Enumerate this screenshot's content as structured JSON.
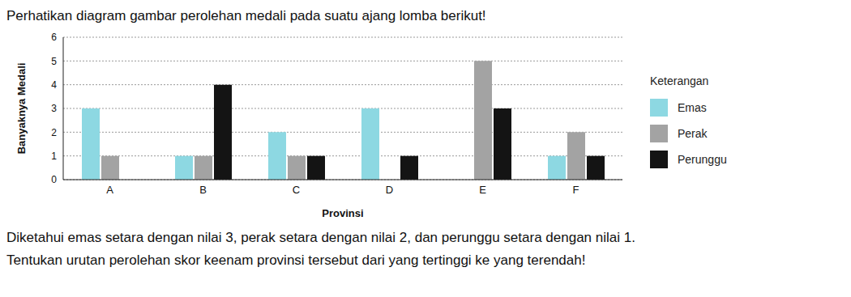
{
  "chart_data": {
    "type": "bar",
    "title": "Perhatikan diagram gambar perolehan medali pada suatu ajang lomba berikut!",
    "annotations": [
      "Diketahui emas setara dengan nilai 3, perak setara dengan nilai 2, dan perunggu setara dengan nilai 1.",
      "Tentukan urutan perolehan skor keenam provinsi tersebut dari yang tertinggi ke yang terendah!"
    ],
    "legend_title": "Keterangan",
    "x_label": "Provinsi",
    "y_label": "Banyaknya Medali",
    "categories": [
      "A",
      "B",
      "C",
      "D",
      "E",
      "F"
    ],
    "series": [
      {
        "name": "Emas",
        "color": "#8dd8e2",
        "values": [
          3,
          1,
          2,
          3,
          0,
          1
        ]
      },
      {
        "name": "Perak",
        "color": "#a3a3a3",
        "values": [
          1,
          1,
          1,
          0,
          5,
          2
        ]
      },
      {
        "name": "Perunggu",
        "color": "#141414",
        "values": [
          0,
          4,
          1,
          1,
          3,
          1
        ]
      }
    ],
    "ylim": [
      0,
      6
    ],
    "yticks": [
      0,
      1,
      2,
      3,
      4,
      5,
      6
    ],
    "grid": true,
    "legend": "right"
  }
}
